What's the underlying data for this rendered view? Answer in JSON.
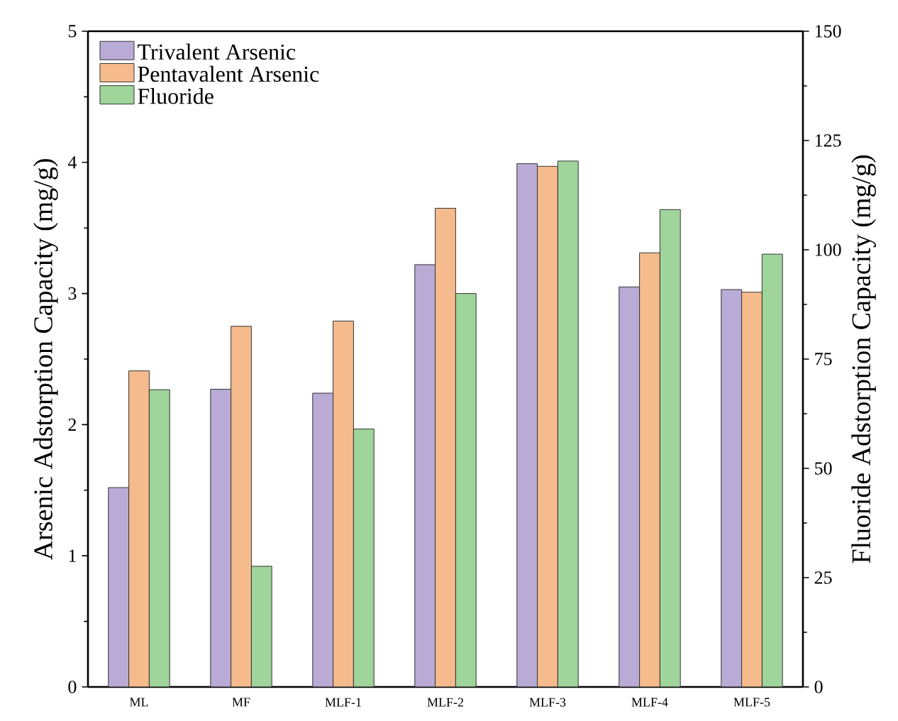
{
  "chart_data": {
    "type": "bar",
    "categories": [
      "ML",
      "MF",
      "MLF-1",
      "MLF-2",
      "MLF-3",
      "MLF-4",
      "MLF-5"
    ],
    "series": [
      {
        "name": "Trivalent Arsenic",
        "color": "#b9abd6",
        "values": [
          1.52,
          2.27,
          2.24,
          3.22,
          3.99,
          3.05,
          3.03
        ]
      },
      {
        "name": "Pentavalent Arsenic",
        "color": "#f6bb8c",
        "values": [
          2.41,
          2.75,
          2.79,
          3.65,
          3.97,
          3.31,
          3.01
        ]
      },
      {
        "name": "Fluoride",
        "color": "#9fd49b",
        "axis": "y2",
        "values": [
          68,
          27.6,
          59,
          90,
          120.3,
          109.2,
          99
        ]
      }
    ],
    "ylabel": "Arsenic Adstorption Capacity (mg/g)",
    "y2label": "Fluoride Adstorption Capacity (mg/g)",
    "ylim": [
      0,
      5
    ],
    "yticks": [
      0,
      1,
      2,
      3,
      4,
      5
    ],
    "y2lim": [
      0,
      150
    ],
    "y2ticks": [
      0,
      25,
      50,
      75,
      100,
      125,
      150
    ],
    "legend": "top left"
  }
}
